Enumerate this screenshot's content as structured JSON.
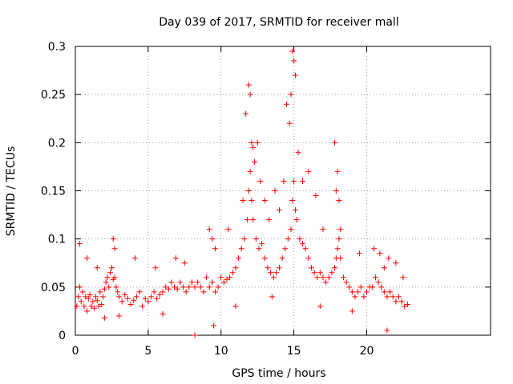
{
  "chart_data": {
    "type": "scatter",
    "title": "Day 039 of 2017, SRMTID for receiver mall",
    "xlabel": "GPS time / hours",
    "ylabel": "SRMTID / TECUs",
    "xlim": [
      0,
      28.5
    ],
    "ylim": [
      0,
      0.3
    ],
    "xticks": [
      0,
      5,
      10,
      15,
      20
    ],
    "xtick_labels": [
      "0",
      "5",
      "10",
      "15",
      "20"
    ],
    "yticks": [
      0,
      0.05,
      0.1,
      0.15,
      0.2,
      0.25,
      0.3
    ],
    "ytick_labels": [
      "0",
      "0.05",
      "0.1",
      "0.15",
      "0.2",
      "0.25",
      "0.3"
    ],
    "grid": true,
    "marker": "+",
    "color": "#ff0000",
    "series": [
      {
        "name": "SRMTID",
        "x": [
          0.1,
          0.2,
          0.3,
          0.4,
          0.5,
          0.6,
          0.7,
          0.8,
          0.9,
          1.0,
          1.1,
          1.2,
          1.3,
          1.4,
          1.5,
          1.6,
          1.7,
          1.8,
          1.9,
          2.0,
          2.1,
          2.2,
          2.3,
          2.4,
          2.5,
          2.6,
          2.7,
          2.8,
          2.9,
          3.0,
          3.2,
          3.4,
          3.6,
          3.8,
          4.0,
          4.2,
          4.4,
          4.6,
          4.8,
          5.0,
          5.2,
          5.4,
          5.6,
          5.8,
          6.0,
          6.2,
          6.4,
          6.6,
          6.8,
          7.0,
          7.2,
          7.4,
          7.6,
          7.8,
          8.0,
          8.2,
          8.4,
          8.6,
          8.8,
          9.0,
          9.2,
          9.4,
          9.6,
          9.8,
          10.0,
          10.2,
          10.4,
          10.6,
          10.8,
          11.0,
          11.2,
          11.4,
          11.6,
          11.8,
          11.9,
          12.0,
          12.1,
          12.2,
          12.4,
          12.6,
          12.8,
          13.0,
          13.2,
          13.4,
          13.6,
          13.8,
          14.0,
          14.2,
          14.4,
          14.6,
          14.8,
          14.9,
          15.0,
          15.1,
          15.2,
          15.4,
          15.6,
          15.8,
          16.0,
          16.2,
          16.4,
          16.6,
          16.8,
          17.0,
          17.2,
          17.4,
          17.6,
          17.8,
          17.9,
          18.0,
          18.1,
          18.2,
          18.4,
          18.6,
          18.8,
          19.0,
          19.2,
          19.4,
          19.6,
          19.8,
          20.0,
          20.2,
          20.4,
          20.6,
          20.8,
          21.0,
          21.2,
          21.4,
          21.6,
          21.8,
          22.0,
          22.2,
          22.4,
          22.6,
          22.8,
          0.3,
          0.8,
          1.5,
          2.6,
          2.7,
          4.1,
          5.5,
          6.9,
          7.5,
          9.2,
          9.4,
          9.6,
          10.5,
          11.5,
          11.7,
          11.9,
          12.0,
          12.1,
          12.2,
          12.3,
          12.5,
          12.7,
          13.0,
          13.3,
          13.7,
          14.0,
          14.3,
          14.5,
          14.7,
          14.8,
          14.9,
          15.0,
          15.1,
          15.3,
          15.6,
          16.0,
          16.5,
          17.0,
          17.8,
          17.9,
          18.0,
          18.1,
          18.2,
          19.5,
          20.5,
          20.9,
          21.2,
          21.5,
          22.0,
          22.5,
          9.5,
          21.4,
          8.2,
          2.0,
          3.0,
          6.0,
          11.0,
          13.5,
          16.8,
          19.0
        ],
        "y": [
          0.03,
          0.04,
          0.05,
          0.035,
          0.045,
          0.03,
          0.04,
          0.025,
          0.038,
          0.042,
          0.03,
          0.035,
          0.028,
          0.04,
          0.036,
          0.03,
          0.045,
          0.032,
          0.04,
          0.048,
          0.055,
          0.06,
          0.05,
          0.065,
          0.07,
          0.058,
          0.06,
          0.05,
          0.045,
          0.04,
          0.035,
          0.042,
          0.038,
          0.032,
          0.036,
          0.04,
          0.045,
          0.03,
          0.038,
          0.035,
          0.04,
          0.045,
          0.038,
          0.042,
          0.045,
          0.05,
          0.048,
          0.055,
          0.05,
          0.048,
          0.055,
          0.05,
          0.045,
          0.05,
          0.055,
          0.05,
          0.055,
          0.05,
          0.045,
          0.06,
          0.05,
          0.055,
          0.045,
          0.05,
          0.06,
          0.055,
          0.058,
          0.06,
          0.065,
          0.07,
          0.08,
          0.09,
          0.1,
          0.12,
          0.15,
          0.17,
          0.14,
          0.12,
          0.1,
          0.09,
          0.095,
          0.08,
          0.07,
          0.065,
          0.06,
          0.065,
          0.07,
          0.08,
          0.09,
          0.1,
          0.11,
          0.14,
          0.16,
          0.13,
          0.12,
          0.1,
          0.095,
          0.09,
          0.08,
          0.07,
          0.065,
          0.06,
          0.065,
          0.06,
          0.055,
          0.06,
          0.065,
          0.07,
          0.08,
          0.09,
          0.1,
          0.08,
          0.06,
          0.055,
          0.05,
          0.045,
          0.04,
          0.045,
          0.05,
          0.04,
          0.045,
          0.05,
          0.05,
          0.06,
          0.055,
          0.05,
          0.045,
          0.04,
          0.045,
          0.04,
          0.035,
          0.04,
          0.035,
          0.03,
          0.032,
          0.095,
          0.08,
          0.07,
          0.1,
          0.09,
          0.08,
          0.07,
          0.08,
          0.075,
          0.11,
          0.1,
          0.09,
          0.11,
          0.14,
          0.23,
          0.26,
          0.25,
          0.2,
          0.195,
          0.18,
          0.2,
          0.16,
          0.14,
          0.12,
          0.15,
          0.13,
          0.16,
          0.24,
          0.22,
          0.25,
          0.295,
          0.285,
          0.27,
          0.19,
          0.16,
          0.17,
          0.145,
          0.11,
          0.2,
          0.15,
          0.17,
          0.14,
          0.11,
          0.085,
          0.09,
          0.085,
          0.07,
          0.08,
          0.075,
          0.06,
          0.01,
          0.005,
          0.0,
          0.018,
          0.02,
          0.022,
          0.03,
          0.04,
          0.03,
          0.025
        ]
      }
    ]
  }
}
